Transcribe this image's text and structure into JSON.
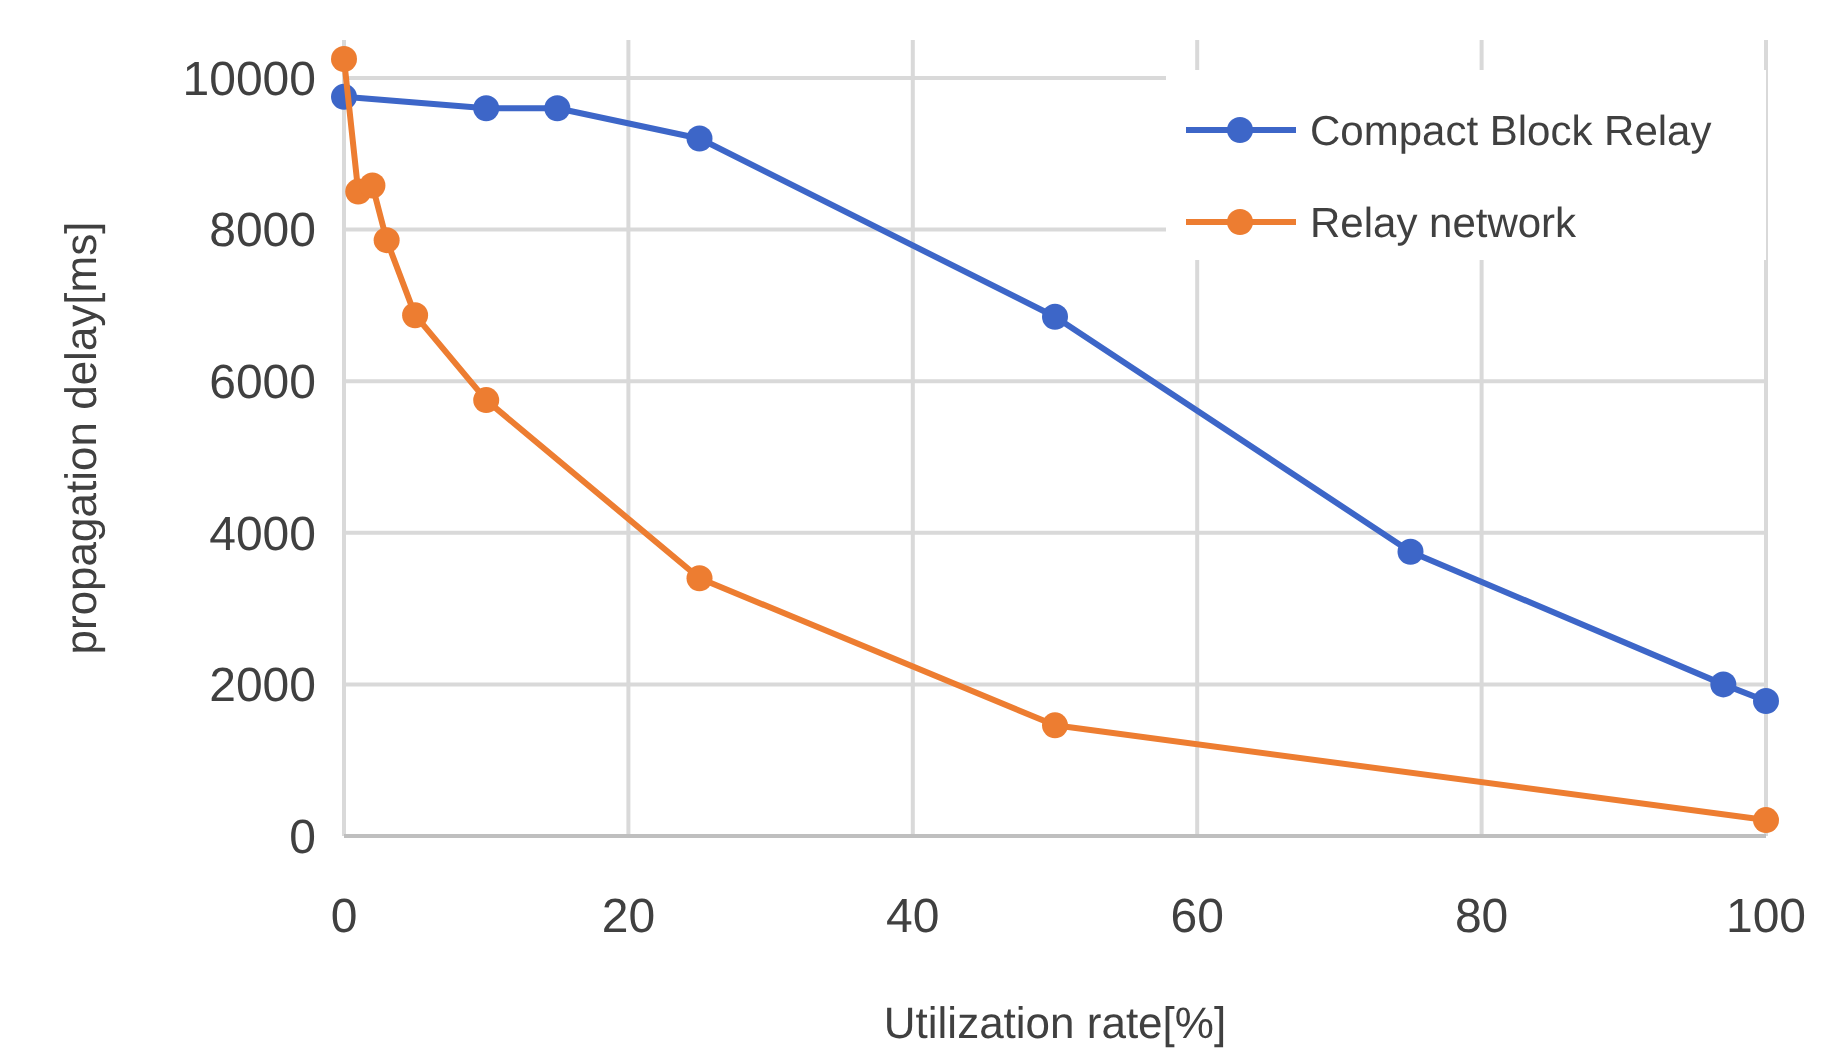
{
  "chart_data": {
    "type": "line",
    "xlabel": "Utilization rate[%]",
    "ylabel": "propagation delay[ms]",
    "xlim": [
      0,
      100
    ],
    "xticks": [
      0,
      20,
      40,
      60,
      80,
      100
    ],
    "ylim": [
      0,
      10500
    ],
    "yticks": [
      0,
      2000,
      4000,
      6000,
      8000,
      10000
    ],
    "grid": true,
    "legend": "top right",
    "marker": "circle",
    "line_style": "solid",
    "series": [
      {
        "name": "Compact Block Relay",
        "color": "#3d66c8",
        "x": [
          0,
          10,
          15,
          25,
          50,
          75,
          97,
          100
        ],
        "values": [
          9750,
          9600,
          9600,
          9200,
          6850,
          3750,
          2000,
          1780
        ]
      },
      {
        "name": "Relay network",
        "color": "#ed7d31",
        "x": [
          0,
          1,
          2,
          3,
          5,
          10,
          25,
          50,
          100
        ],
        "values": [
          10250,
          8500,
          8580,
          7860,
          6870,
          5750,
          3400,
          1460,
          210
        ]
      }
    ]
  }
}
